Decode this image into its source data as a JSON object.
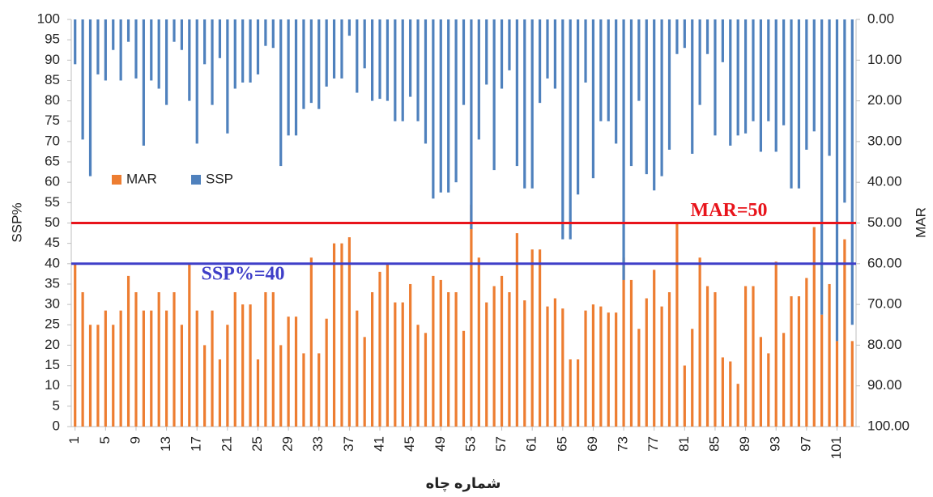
{
  "chart_data": {
    "type": "bar",
    "x_label": "شماره چاه",
    "y_label": "SSP%",
    "y2_label": "MAR",
    "categories": [
      1,
      null,
      null,
      null,
      5,
      null,
      null,
      null,
      9,
      null,
      null,
      null,
      13,
      null,
      null,
      null,
      17,
      null,
      null,
      null,
      21,
      null,
      null,
      null,
      25,
      null,
      null,
      null,
      29,
      null,
      null,
      null,
      33,
      null,
      null,
      null,
      37,
      null,
      null,
      null,
      41,
      null,
      null,
      null,
      45,
      null,
      null,
      null,
      49,
      null,
      null,
      null,
      53,
      null,
      null,
      null,
      57,
      null,
      null,
      null,
      61,
      null,
      null,
      null,
      65,
      null,
      null,
      null,
      69,
      null,
      null,
      null,
      73,
      null,
      null,
      null,
      77,
      null,
      null,
      null,
      81,
      null,
      null,
      null,
      85,
      null,
      null,
      null,
      89,
      null,
      null,
      null,
      93,
      null,
      null,
      null,
      97,
      null,
      null,
      null,
      101,
      null,
      null
    ],
    "series": [
      {
        "name": "MAR",
        "color": "#ed7d31",
        "values": [
          40,
          33,
          25,
          25,
          28.5,
          25,
          28.5,
          37,
          33,
          28.5,
          28.5,
          33,
          28.5,
          33,
          25,
          40,
          28.5,
          20,
          28.5,
          16.5,
          25,
          33,
          30,
          30,
          16.5,
          33,
          33,
          20,
          27,
          27,
          18,
          41.5,
          18,
          26.5,
          45,
          45,
          46.5,
          28.5,
          22,
          33,
          38,
          40,
          30.5,
          30.5,
          35,
          25,
          23,
          37,
          36,
          33,
          33,
          23.5,
          54.5,
          41.5,
          30.5,
          34.5,
          37,
          33,
          47.5,
          31,
          43.5,
          43.5,
          29.5,
          31.5,
          29,
          16.5,
          16.5,
          28.5,
          30,
          29.5,
          28,
          28,
          41.5,
          36,
          24,
          31.5,
          38.5,
          29.5,
          33,
          50,
          15,
          24,
          41.5,
          34.5,
          33,
          17,
          16,
          10.5,
          34.5,
          34.5,
          22,
          18,
          40.5,
          23,
          32,
          32,
          36.5,
          49,
          27.5,
          35,
          21,
          46,
          21
        ]
      },
      {
        "name": "SSP",
        "color": "#4f81bd",
        "axis": "y2",
        "values": [
          11,
          29.5,
          38.5,
          13.5,
          15,
          7.5,
          15,
          5.5,
          14.5,
          31,
          15,
          17,
          21,
          5.5,
          7.5,
          20,
          30.5,
          11,
          21,
          9.5,
          28,
          17,
          15.5,
          15.5,
          13.5,
          6.5,
          7,
          36,
          28.5,
          28.5,
          22,
          20.5,
          22,
          16.5,
          14.5,
          14.5,
          4,
          18,
          12,
          20,
          19.5,
          20,
          25,
          25,
          19,
          25,
          30.5,
          44,
          42.5,
          42.5,
          40,
          21,
          51.5,
          29.5,
          16,
          37,
          17,
          12.5,
          36,
          41.5,
          41.5,
          20.5,
          14.5,
          17,
          54,
          54,
          43,
          15.5,
          39,
          25,
          25,
          30.5,
          64,
          36,
          20,
          38,
          42,
          38.5,
          32,
          8.5,
          7,
          33,
          21,
          8.5,
          28.5,
          10.5,
          31,
          28.5,
          28,
          25,
          32.5,
          25,
          32.5,
          26,
          41.5,
          41.5,
          32,
          27.5,
          72.5,
          33.5,
          79,
          45,
          75
        ]
      }
    ],
    "ylim": [
      0,
      100
    ],
    "yticks": [
      0,
      5,
      10,
      15,
      20,
      25,
      30,
      35,
      40,
      45,
      50,
      55,
      60,
      65,
      70,
      75,
      80,
      85,
      90,
      95,
      100
    ],
    "y2lim": [
      100,
      0
    ],
    "y2ticks": [
      {
        "value": 0,
        "label": "0.00"
      },
      {
        "value": 10,
        "label": "10.00"
      },
      {
        "value": 20,
        "label": "20.00"
      },
      {
        "value": 30,
        "label": "30.00"
      },
      {
        "value": 40,
        "label": "40.00"
      },
      {
        "value": 50,
        "label": "50.00"
      },
      {
        "value": 60,
        "label": "60.00"
      },
      {
        "value": 70,
        "label": "70.00"
      },
      {
        "value": 80,
        "label": "80.00"
      },
      {
        "value": 90,
        "label": "90.00"
      },
      {
        "value": 100,
        "label": "100.00"
      }
    ],
    "reference_lines": [
      {
        "value": 50,
        "label": "MAR=50",
        "color": "#e8141b"
      },
      {
        "value": 40,
        "label": "SSP%=40",
        "color": "#3f3fc8"
      }
    ],
    "legend": "upper left"
  }
}
